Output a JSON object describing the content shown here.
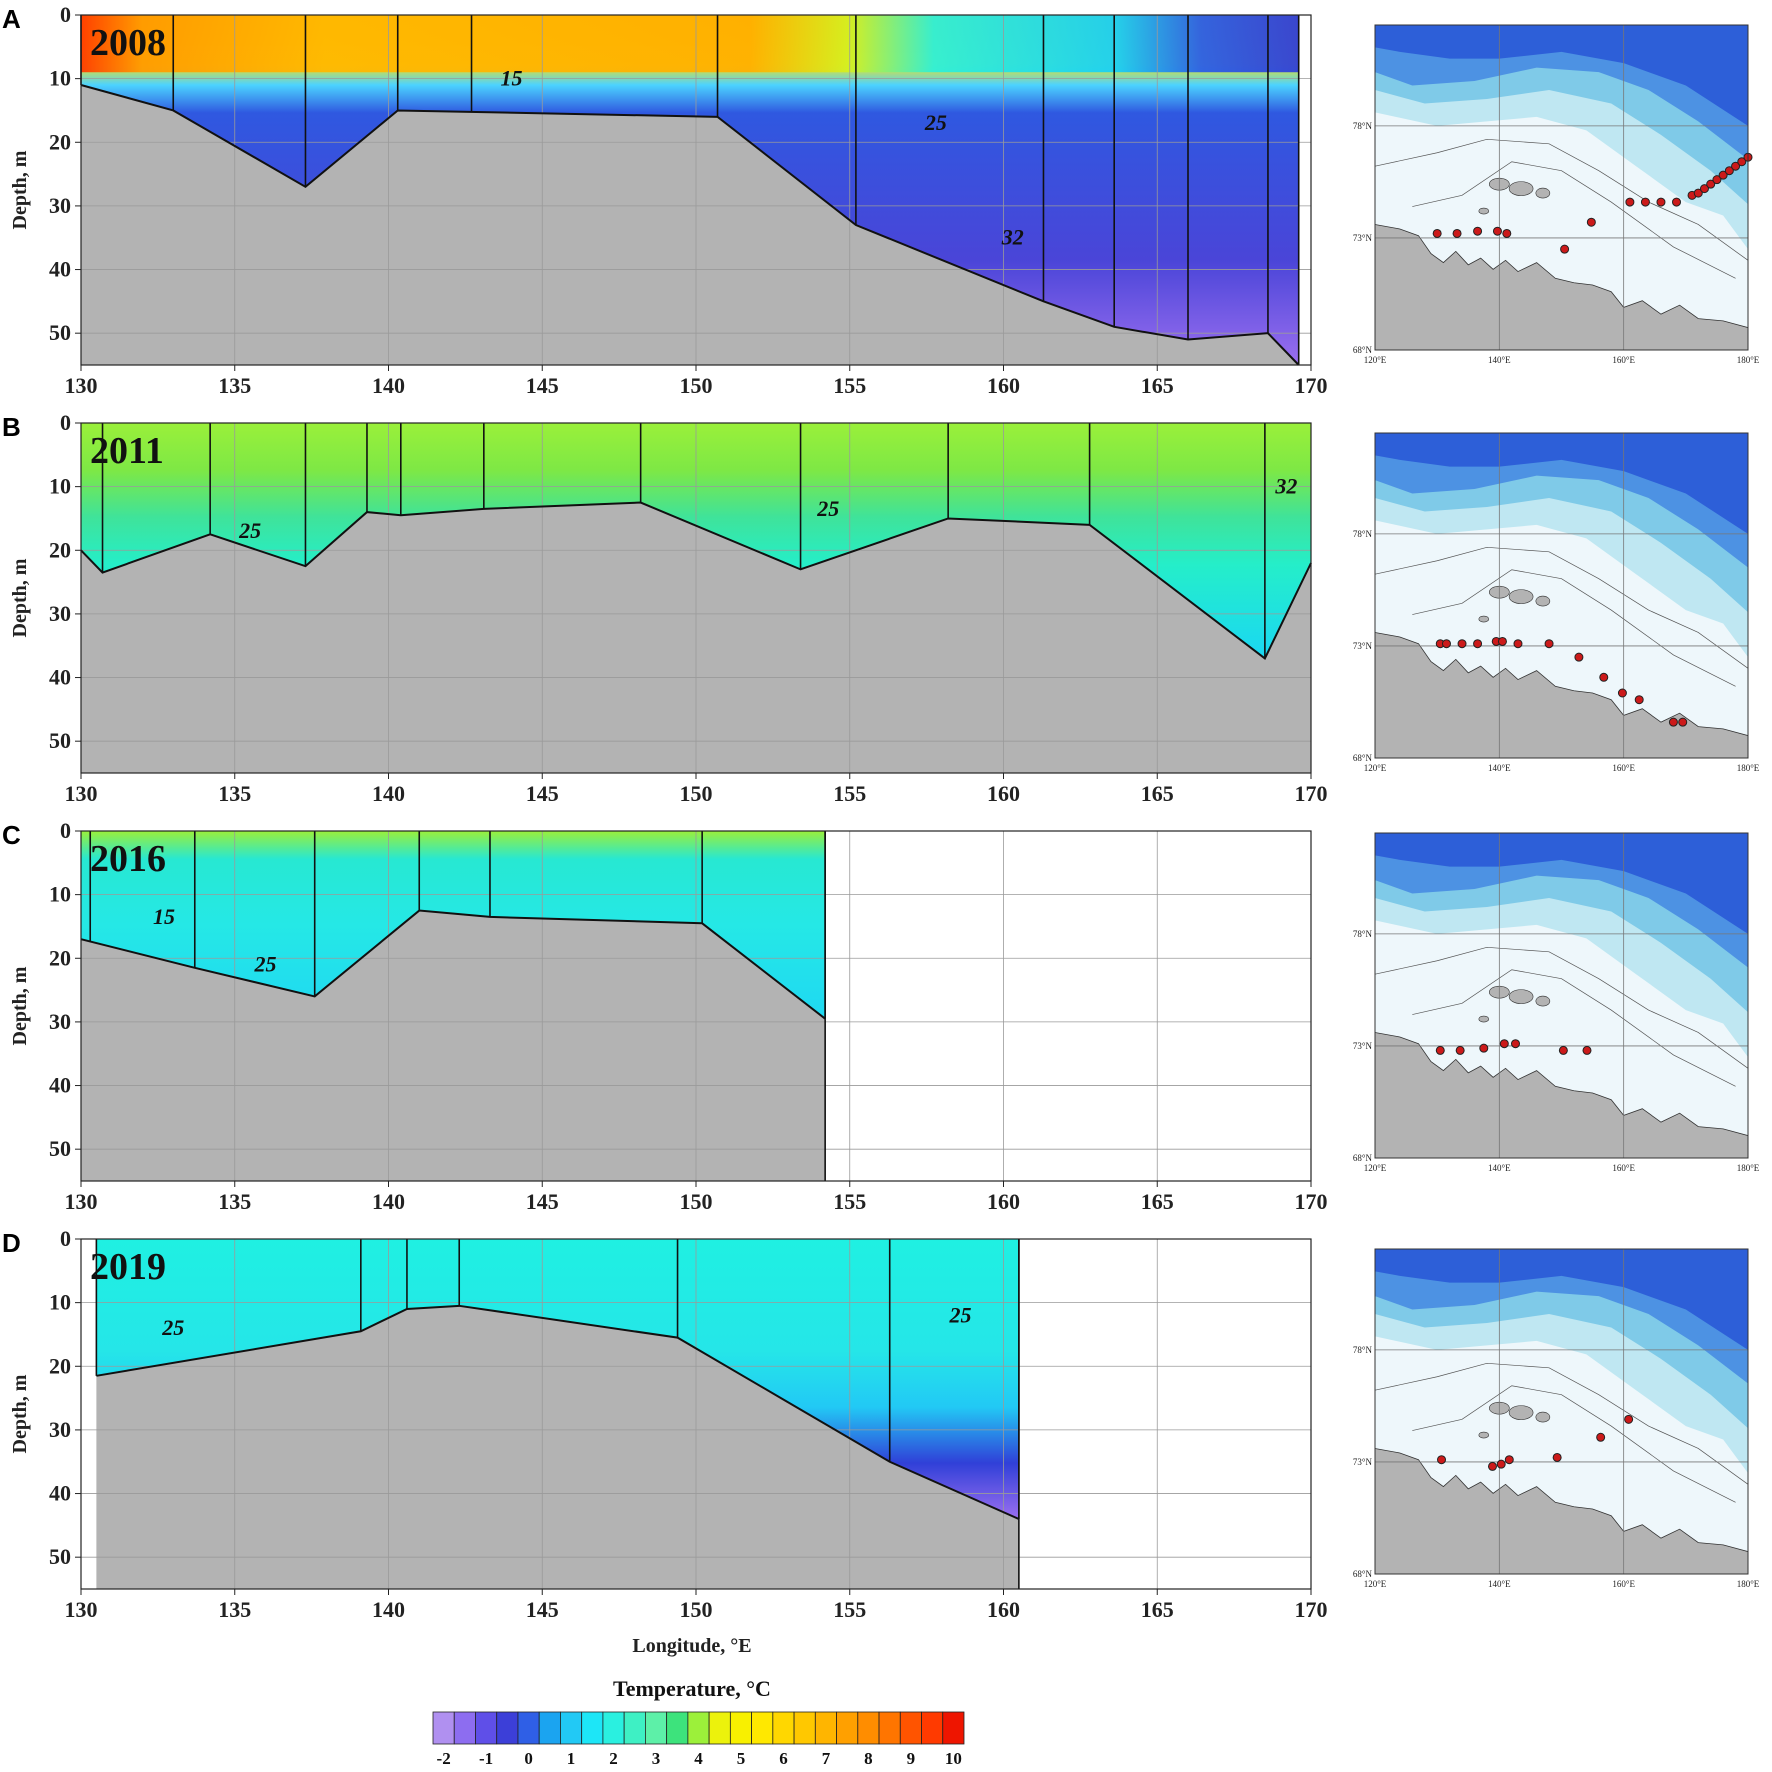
{
  "chart_data": {
    "type": "heatmap",
    "title": "",
    "xlabel": "Longitude, °E",
    "ylabel": "Depth, m",
    "xlim": [
      130,
      170
    ],
    "ylim": [
      55,
      0
    ],
    "x_ticks": [
      "130",
      "135",
      "140",
      "145",
      "150",
      "155",
      "160",
      "165",
      "170"
    ],
    "y_ticks": [
      "0",
      "10",
      "20",
      "30",
      "40",
      "50"
    ],
    "colorbar": {
      "title": "Temperature, °C",
      "min": -2,
      "max": 10,
      "step": 0.5,
      "tick_labels": [
        "-2",
        "-1",
        "0",
        "1",
        "2",
        "3",
        "4",
        "5",
        "6",
        "7",
        "8",
        "9",
        "10"
      ]
    },
    "panels": [
      {
        "letter": "A",
        "year": "2008",
        "bottom": [
          [
            130,
            11
          ],
          [
            133,
            15
          ],
          [
            137.3,
            27
          ],
          [
            140.3,
            15
          ],
          [
            150.7,
            16
          ],
          [
            155.2,
            33
          ],
          [
            161.3,
            45
          ],
          [
            163.6,
            49
          ],
          [
            166,
            51
          ],
          [
            168.6,
            50
          ],
          [
            169.6,
            55
          ]
        ],
        "stations": [
          130,
          133,
          137.3,
          140.3,
          142.7,
          150.7,
          155.2,
          161.3,
          163.6,
          166,
          168.6
        ],
        "isohaline_labels": [
          {
            "text": "15",
            "lon": 144,
            "depth": 10
          },
          {
            "text": "25",
            "lon": 157.8,
            "depth": 17
          },
          {
            "text": "32",
            "lon": 160.3,
            "depth": 35
          }
        ],
        "map_stations": [
          [
            130,
            73.2
          ],
          [
            133.2,
            73.2
          ],
          [
            136.5,
            73.3
          ],
          [
            139.7,
            73.3
          ],
          [
            141.2,
            73.2
          ],
          [
            150.5,
            72.5
          ],
          [
            154.8,
            73.7
          ],
          [
            161,
            74.6
          ],
          [
            163.5,
            74.6
          ],
          [
            166,
            74.6
          ],
          [
            168.5,
            74.6
          ],
          [
            171,
            74.9
          ],
          [
            172,
            75
          ],
          [
            173,
            75.2
          ],
          [
            174,
            75.4
          ],
          [
            175,
            75.6
          ],
          [
            176,
            75.8
          ],
          [
            177,
            76
          ],
          [
            178,
            76.2
          ],
          [
            179,
            76.4
          ],
          [
            180,
            76.6
          ]
        ]
      },
      {
        "letter": "B",
        "year": "2011",
        "bottom": [
          [
            130,
            20
          ],
          [
            130.7,
            23.5
          ],
          [
            134.2,
            17.5
          ],
          [
            137.3,
            22.5
          ],
          [
            139.3,
            14
          ],
          [
            140.4,
            14.5
          ],
          [
            143.1,
            13.5
          ],
          [
            148.2,
            12.5
          ],
          [
            153.4,
            23
          ],
          [
            158.2,
            15
          ],
          [
            162.8,
            16
          ],
          [
            168.5,
            37
          ],
          [
            170,
            22
          ]
        ],
        "stations": [
          130.7,
          134.2,
          137.3,
          139.3,
          140.4,
          143.1,
          148.2,
          153.4,
          158.2,
          162.8,
          168.5
        ],
        "isohaline_labels": [
          {
            "text": "25",
            "lon": 135.5,
            "depth": 17
          },
          {
            "text": "25",
            "lon": 154.3,
            "depth": 13.5
          },
          {
            "text": "32",
            "lon": 169.2,
            "depth": 10
          }
        ],
        "map_stations": [
          [
            130.5,
            73.1
          ],
          [
            131.5,
            73.1
          ],
          [
            134,
            73.1
          ],
          [
            136.5,
            73.1
          ],
          [
            139.5,
            73.2
          ],
          [
            140.5,
            73.2
          ],
          [
            143,
            73.1
          ],
          [
            148,
            73.1
          ],
          [
            152.8,
            72.5
          ],
          [
            156.8,
            71.6
          ],
          [
            159.8,
            70.9
          ],
          [
            162.5,
            70.6
          ],
          [
            168,
            69.6
          ],
          [
            169.5,
            69.6
          ]
        ]
      },
      {
        "letter": "C",
        "year": "2016",
        "bottom": [
          [
            130,
            17
          ],
          [
            133.7,
            21.5
          ],
          [
            137.6,
            26
          ],
          [
            141,
            12.5
          ],
          [
            143.3,
            13.5
          ],
          [
            150.2,
            14.5
          ],
          [
            154.2,
            29.5
          ]
        ],
        "stations": [
          130.3,
          133.7,
          137.6,
          141,
          143.3,
          150.2,
          154.2
        ],
        "isohaline_labels": [
          {
            "text": "15",
            "lon": 132.7,
            "depth": 13.5
          },
          {
            "text": "25",
            "lon": 136,
            "depth": 21
          }
        ],
        "map_stations": [
          [
            130.5,
            72.8
          ],
          [
            133.7,
            72.8
          ],
          [
            137.5,
            72.9
          ],
          [
            140.8,
            73.1
          ],
          [
            142.6,
            73.1
          ],
          [
            150.3,
            72.8
          ],
          [
            154.1,
            72.8
          ]
        ]
      },
      {
        "letter": "D",
        "year": "2019",
        "bottom": [
          [
            130.5,
            21.5
          ],
          [
            139.1,
            14.5
          ],
          [
            140.6,
            11
          ],
          [
            142.3,
            10.5
          ],
          [
            149.4,
            15.5
          ],
          [
            156.3,
            35
          ],
          [
            160.5,
            44
          ]
        ],
        "stations": [
          130.5,
          139.1,
          140.6,
          142.3,
          149.4,
          156.3,
          160.5
        ],
        "isohaline_labels": [
          {
            "text": "25",
            "lon": 133,
            "depth": 14
          },
          {
            "text": "25",
            "lon": 158.6,
            "depth": 12
          }
        ],
        "map_stations": [
          [
            130.7,
            73.1
          ],
          [
            138.9,
            72.8
          ],
          [
            140.3,
            72.9
          ],
          [
            141.6,
            73.1
          ],
          [
            149.3,
            73.2
          ],
          [
            156.3,
            74.1
          ],
          [
            160.8,
            74.9
          ]
        ]
      }
    ],
    "map": {
      "lon_ticks": [
        "120°E",
        "140°E",
        "160°E",
        "180°E"
      ],
      "lat_ticks": [
        "78°N",
        "73°N",
        "68°N"
      ]
    }
  },
  "colors": {
    "land": "#b3b3b3",
    "grid": "#9a9a9a",
    "station_dot": "#cc1a1a",
    "deep_sea": "#2d5fd8",
    "shelf": "#eef7fb"
  }
}
